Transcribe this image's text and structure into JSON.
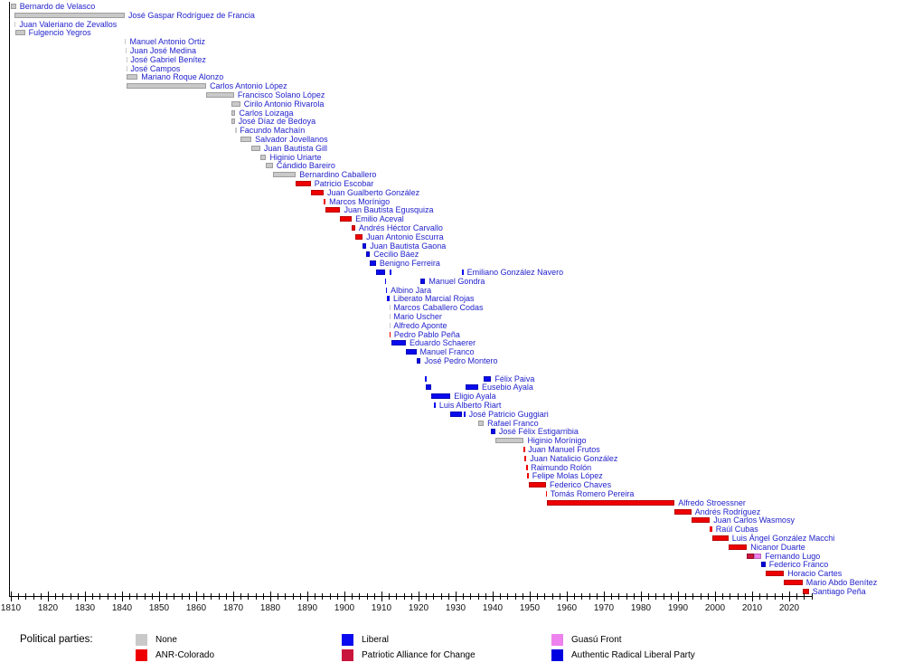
{
  "legend": {
    "title": "Political parties:",
    "entries": [
      {
        "key": "none",
        "label": "None",
        "color": "#c9c9c9"
      },
      {
        "key": "anr",
        "label": "ANR-Colorado",
        "color": "#ee0000"
      },
      {
        "key": "liberal",
        "label": "Liberal",
        "color": "#0a0aee"
      },
      {
        "key": "pac",
        "label": "Patriotic Alliance for Change",
        "color": "#c9143c"
      },
      {
        "key": "guasu",
        "label": "Guasú Front",
        "color": "#ee82ee"
      },
      {
        "key": "plra",
        "label": "Authentic Radical Liberal Party",
        "color": "#0000e0"
      }
    ]
  },
  "chart_data": {
    "type": "bar",
    "variant": "horizontal-timeline-gantt",
    "label_color": "#2222cc",
    "x_axis": {
      "min": 1810,
      "max": 2026,
      "major_tick_step": 10,
      "minor_tick_step": 2,
      "major_label_min": 1810,
      "major_label_max": 2020,
      "tick_labels": [
        "1810",
        "1820",
        "1830",
        "1840",
        "1850",
        "1860",
        "1870",
        "1880",
        "1890",
        "1900",
        "1910",
        "1920",
        "1930",
        "1940",
        "1950",
        "1960",
        "1970",
        "1980",
        "1990",
        "2000",
        "2010",
        "2020"
      ]
    },
    "rows": [
      {
        "name": "Bernardo de Velasco",
        "terms": [
          {
            "from": 1810.0,
            "to": 1811.4,
            "party": "none"
          }
        ]
      },
      {
        "name": "José Gaspar Rodríguez de Francia",
        "terms": [
          {
            "from": 1811.0,
            "to": 1840.7,
            "party": "none"
          }
        ]
      },
      {
        "name": "Juan Valeriano de Zevallos",
        "terms": [
          {
            "from": 1811.0,
            "to": 1811.3,
            "party": "none"
          }
        ]
      },
      {
        "name": "Fulgencio Yegros",
        "terms": [
          {
            "from": 1811.3,
            "to": 1813.8,
            "party": "none"
          }
        ]
      },
      {
        "name": "Manuel Antonio Ortiz",
        "terms": [
          {
            "from": 1840.7,
            "to": 1841.1,
            "party": "none"
          }
        ]
      },
      {
        "name": "Juan José Medina",
        "terms": [
          {
            "from": 1841.0,
            "to": 1841.2,
            "party": "none"
          }
        ]
      },
      {
        "name": "José Gabriel Benítez",
        "terms": [
          {
            "from": 1841.1,
            "to": 1841.3,
            "party": "none"
          }
        ]
      },
      {
        "name": "José Campos",
        "terms": [
          {
            "from": 1841.1,
            "to": 1841.3,
            "party": "none"
          }
        ]
      },
      {
        "name": "Mariano Roque Alonzo",
        "terms": [
          {
            "from": 1841.2,
            "to": 1844.2,
            "party": "none"
          }
        ]
      },
      {
        "name": "Carlos Antonio López",
        "terms": [
          {
            "from": 1841.2,
            "to": 1862.7,
            "party": "none"
          }
        ]
      },
      {
        "name": "Francisco Solano López",
        "terms": [
          {
            "from": 1862.7,
            "to": 1870.2,
            "party": "none"
          }
        ]
      },
      {
        "name": "Cirilo Antonio Rivarola",
        "terms": [
          {
            "from": 1869.6,
            "to": 1871.9,
            "party": "none"
          }
        ]
      },
      {
        "name": "Carlos Loizaga",
        "terms": [
          {
            "from": 1869.6,
            "to": 1870.6,
            "party": "none"
          }
        ]
      },
      {
        "name": "José Díaz de Bedoya",
        "terms": [
          {
            "from": 1869.6,
            "to": 1870.4,
            "party": "none"
          }
        ]
      },
      {
        "name": "Facundo Machaín",
        "terms": [
          {
            "from": 1870.6,
            "to": 1870.8,
            "party": "none"
          }
        ]
      },
      {
        "name": "Salvador Jovellanos",
        "terms": [
          {
            "from": 1871.9,
            "to": 1874.9,
            "party": "none"
          }
        ]
      },
      {
        "name": "Juan Bautista Gill",
        "terms": [
          {
            "from": 1874.9,
            "to": 1877.3,
            "party": "none"
          }
        ]
      },
      {
        "name": "Higinio Uriarte",
        "terms": [
          {
            "from": 1877.3,
            "to": 1878.9,
            "party": "none"
          }
        ]
      },
      {
        "name": "Cándido Bareiro",
        "terms": [
          {
            "from": 1878.9,
            "to": 1880.7,
            "party": "none"
          }
        ]
      },
      {
        "name": "Bernardino Caballero",
        "terms": [
          {
            "from": 1880.7,
            "to": 1886.9,
            "party": "none"
          }
        ]
      },
      {
        "name": "Patricio Escobar",
        "terms": [
          {
            "from": 1886.9,
            "to": 1890.9,
            "party": "anr"
          }
        ]
      },
      {
        "name": "Juan Gualberto González",
        "terms": [
          {
            "from": 1890.9,
            "to": 1894.4,
            "party": "anr"
          }
        ]
      },
      {
        "name": "Marcos Morínigo",
        "terms": [
          {
            "from": 1894.4,
            "to": 1894.9,
            "party": "anr"
          }
        ]
      },
      {
        "name": "Juan Bautista Egusquiza",
        "terms": [
          {
            "from": 1894.9,
            "to": 1898.9,
            "party": "anr"
          }
        ]
      },
      {
        "name": "Emilio Aceval",
        "terms": [
          {
            "from": 1898.9,
            "to": 1902.0,
            "party": "anr"
          }
        ]
      },
      {
        "name": "Andrés Héctor Carvallo",
        "terms": [
          {
            "from": 1902.0,
            "to": 1902.9,
            "party": "anr"
          }
        ]
      },
      {
        "name": "Juan Antonio Escurra",
        "terms": [
          {
            "from": 1902.9,
            "to": 1904.9,
            "party": "anr"
          }
        ]
      },
      {
        "name": "Juan Bautista Gaona",
        "terms": [
          {
            "from": 1904.9,
            "to": 1905.9,
            "party": "liberal"
          }
        ]
      },
      {
        "name": "Cecilio Báez",
        "terms": [
          {
            "from": 1905.9,
            "to": 1906.9,
            "party": "liberal"
          }
        ]
      },
      {
        "name": "Benigno Ferreira",
        "terms": [
          {
            "from": 1906.9,
            "to": 1908.5,
            "party": "liberal"
          }
        ]
      },
      {
        "name": "Emiliano González Navero",
        "terms": [
          {
            "from": 1908.5,
            "to": 1910.9,
            "party": "liberal"
          },
          {
            "from": 1912.2,
            "to": 1912.6,
            "party": "liberal"
          },
          {
            "from": 1931.8,
            "to": 1932.1,
            "party": "liberal"
          }
        ]
      },
      {
        "name": "Manuel Gondra",
        "terms": [
          {
            "from": 1910.9,
            "to": 1911.1,
            "party": "liberal"
          },
          {
            "from": 1920.6,
            "to": 1921.8,
            "party": "liberal"
          }
        ]
      },
      {
        "name": "Albino Jara",
        "terms": [
          {
            "from": 1911.1,
            "to": 1911.5,
            "party": "liberal"
          }
        ]
      },
      {
        "name": "Liberato Marcial Rojas",
        "terms": [
          {
            "from": 1911.5,
            "to": 1912.2,
            "party": "liberal"
          }
        ]
      },
      {
        "name": "Marcos Caballero Codas",
        "terms": [
          {
            "from": 1912.1,
            "to": 1912.3,
            "party": "none"
          }
        ]
      },
      {
        "name": "Mario Uscher",
        "terms": [
          {
            "from": 1912.1,
            "to": 1912.3,
            "party": "none"
          }
        ]
      },
      {
        "name": "Alfredo Aponte",
        "terms": [
          {
            "from": 1912.1,
            "to": 1912.3,
            "party": "none"
          }
        ]
      },
      {
        "name": "Pedro Pablo Peña",
        "terms": [
          {
            "from": 1912.1,
            "to": 1912.4,
            "party": "anr"
          }
        ]
      },
      {
        "name": "Eduardo Schaerer",
        "terms": [
          {
            "from": 1912.6,
            "to": 1916.6,
            "party": "liberal"
          }
        ]
      },
      {
        "name": "Manuel Franco",
        "terms": [
          {
            "from": 1916.6,
            "to": 1919.4,
            "party": "liberal"
          }
        ]
      },
      {
        "name": "José Pedro Montero",
        "terms": [
          {
            "from": 1919.4,
            "to": 1920.6,
            "party": "liberal"
          }
        ]
      },
      {
        "name": "",
        "terms": []
      },
      {
        "name": "Félix Paiva",
        "terms": [
          {
            "from": 1921.8,
            "to": 1921.9,
            "party": "liberal"
          },
          {
            "from": 1937.6,
            "to": 1939.6,
            "party": "liberal"
          }
        ]
      },
      {
        "name": "Eusebio Ayala",
        "terms": [
          {
            "from": 1921.9,
            "to": 1923.3,
            "party": "liberal"
          },
          {
            "from": 1932.6,
            "to": 1936.1,
            "party": "liberal"
          }
        ]
      },
      {
        "name": "Eligio Ayala",
        "terms": [
          {
            "from": 1923.3,
            "to": 1928.6,
            "party": "liberal"
          }
        ]
      },
      {
        "name": "Luis Alberto Riart",
        "terms": [
          {
            "from": 1924.2,
            "to": 1924.6,
            "party": "liberal"
          }
        ]
      },
      {
        "name": "José Patricio Guggiari",
        "terms": [
          {
            "from": 1928.6,
            "to": 1931.8,
            "party": "liberal"
          },
          {
            "from": 1932.1,
            "to": 1932.6,
            "party": "liberal"
          }
        ]
      },
      {
        "name": "Rafael Franco",
        "terms": [
          {
            "from": 1936.1,
            "to": 1937.6,
            "party": "none"
          }
        ]
      },
      {
        "name": "José Félix Estigarribia",
        "terms": [
          {
            "from": 1939.6,
            "to": 1940.7,
            "party": "liberal"
          }
        ]
      },
      {
        "name": "Higinio Morínigo",
        "terms": [
          {
            "from": 1940.7,
            "to": 1948.4,
            "party": "none"
          }
        ]
      },
      {
        "name": "Juan Manuel Frutos",
        "terms": [
          {
            "from": 1948.4,
            "to": 1948.6,
            "party": "anr"
          }
        ]
      },
      {
        "name": "Juan Natalicio González",
        "terms": [
          {
            "from": 1948.6,
            "to": 1949.1,
            "party": "anr"
          }
        ]
      },
      {
        "name": "Raimundo Rolón",
        "terms": [
          {
            "from": 1949.1,
            "to": 1949.3,
            "party": "anr"
          }
        ]
      },
      {
        "name": "Felipe Molas López",
        "terms": [
          {
            "from": 1949.3,
            "to": 1949.7,
            "party": "anr"
          }
        ]
      },
      {
        "name": "Federico Chaves",
        "terms": [
          {
            "from": 1949.7,
            "to": 1954.4,
            "party": "anr"
          }
        ]
      },
      {
        "name": "Tomás Romero Pereira",
        "terms": [
          {
            "from": 1954.4,
            "to": 1954.6,
            "party": "anr"
          }
        ]
      },
      {
        "name": "Alfredo Stroessner",
        "terms": [
          {
            "from": 1954.6,
            "to": 1989.1,
            "party": "anr"
          }
        ]
      },
      {
        "name": "Andrés Rodríguez",
        "terms": [
          {
            "from": 1989.1,
            "to": 1993.6,
            "party": "anr"
          }
        ]
      },
      {
        "name": "Juan Carlos Wasmosy",
        "terms": [
          {
            "from": 1993.6,
            "to": 1998.6,
            "party": "anr"
          }
        ]
      },
      {
        "name": "Raúl Cubas",
        "terms": [
          {
            "from": 1998.6,
            "to": 1999.2,
            "party": "anr"
          }
        ]
      },
      {
        "name": "Luis Ángel González Macchi",
        "terms": [
          {
            "from": 1999.2,
            "to": 2003.6,
            "party": "anr"
          }
        ]
      },
      {
        "name": "Nicanor Duarte",
        "terms": [
          {
            "from": 2003.6,
            "to": 2008.6,
            "party": "anr"
          }
        ]
      },
      {
        "name": "Fernando Lugo",
        "terms": [
          {
            "from": 2008.6,
            "to": 2010.5,
            "party": "pac"
          },
          {
            "from": 2010.5,
            "to": 2012.5,
            "party": "guasu"
          }
        ]
      },
      {
        "name": "Federico Franco",
        "terms": [
          {
            "from": 2012.5,
            "to": 2013.6,
            "party": "plra"
          }
        ]
      },
      {
        "name": "Horacio Cartes",
        "terms": [
          {
            "from": 2013.6,
            "to": 2018.6,
            "party": "anr"
          }
        ]
      },
      {
        "name": "Mario Abdo Benítez",
        "terms": [
          {
            "from": 2018.6,
            "to": 2023.6,
            "party": "anr"
          }
        ]
      },
      {
        "name": "Santiago Peña",
        "terms": [
          {
            "from": 2023.6,
            "to": 2025.3,
            "party": "anr"
          }
        ]
      }
    ]
  }
}
